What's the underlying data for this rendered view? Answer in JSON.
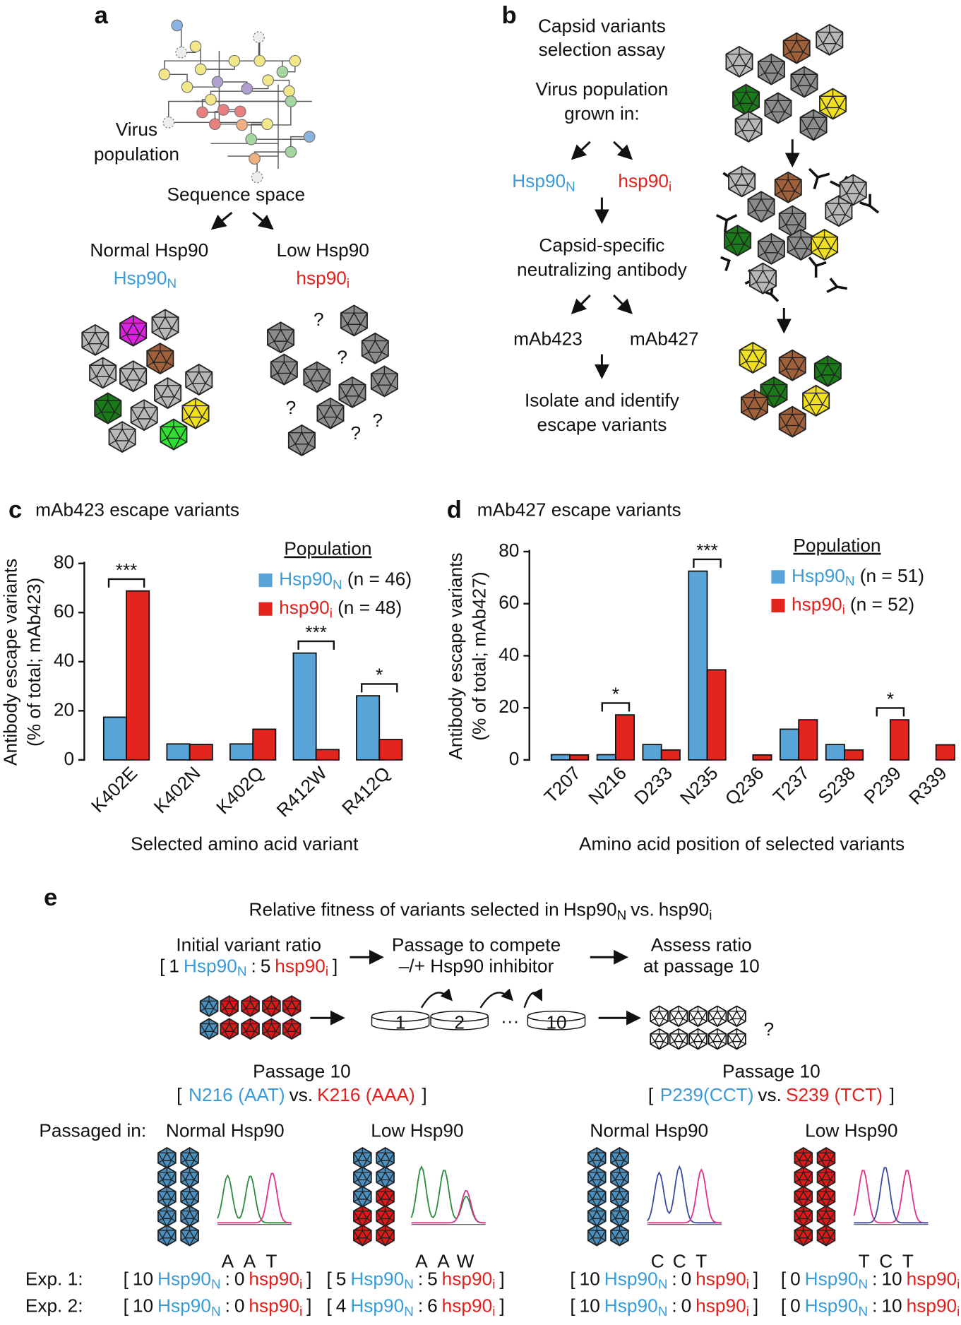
{
  "terms": {
    "N": {
      "base": "Hsp90",
      "sub": "N"
    },
    "i": {
      "base": "hsp90",
      "sub": "i"
    }
  },
  "panel_a": {
    "label": "a",
    "population": [
      "Virus",
      "population"
    ],
    "sequence_space": "Sequence space",
    "normal": "Normal Hsp90",
    "low": "Low Hsp90",
    "unknown": "?"
  },
  "panel_b": {
    "label": "b",
    "title": [
      "Capsid variants",
      "selection assay"
    ],
    "grown": [
      "Virus population",
      "grown in:"
    ],
    "antibody": [
      "Capsid-specific",
      "neutralizing antibody"
    ],
    "antibodies": [
      "mAb423",
      "mAb427"
    ],
    "isolate": [
      "Isolate and identify",
      "escape variants"
    ]
  },
  "chart_data": [
    {
      "type": "bar",
      "panel": "c",
      "title": "mAb423 escape variants",
      "ylabel": [
        "Antibody escape variants",
        "(% of total; mAb423)"
      ],
      "xlabel": "Selected amino acid variant",
      "categories": [
        "K402E",
        "K402N",
        "K402Q",
        "R412W",
        "R412Q"
      ],
      "series": [
        {
          "name": "Hsp90",
          "name_sub": "N",
          "n_label": "(n = 46)",
          "color": "#5aa5d8",
          "values": [
            17.4,
            6.5,
            6.5,
            43.5,
            26.1
          ]
        },
        {
          "name": "hsp90",
          "name_sub": "i",
          "n_label": "(n = 48)",
          "color": "#e3241f",
          "values": [
            68.8,
            6.3,
            12.5,
            4.2,
            8.3
          ]
        }
      ],
      "ylim": [
        0,
        80
      ],
      "yticks": [
        0,
        20,
        40,
        60,
        80
      ],
      "legend_title": "Population",
      "legend": "upper right",
      "annotations": [
        {
          "category": 0,
          "text": "***"
        },
        {
          "category": 3,
          "text": "***"
        },
        {
          "category": 4,
          "text": "*"
        }
      ]
    },
    {
      "type": "bar",
      "panel": "d",
      "title": "mAb427 escape variants",
      "ylabel": [
        "Antibody escape variants",
        "(% of total; mAb427)"
      ],
      "xlabel": "Amino acid position of selected variants",
      "categories": [
        "T207",
        "N216",
        "D233",
        "N235",
        "Q236",
        "T237",
        "S238",
        "P239",
        "R339"
      ],
      "series": [
        {
          "name": "Hsp90",
          "name_sub": "N",
          "n_label": "(n = 51)",
          "color": "#5aa5d8",
          "values": [
            2.0,
            2.0,
            5.9,
            72.5,
            0,
            11.8,
            5.9,
            0,
            0
          ]
        },
        {
          "name": "hsp90",
          "name_sub": "i",
          "n_label": "(n = 52)",
          "color": "#e3241f",
          "values": [
            1.9,
            17.3,
            3.8,
            34.6,
            1.9,
            15.4,
            3.8,
            15.4,
            5.8
          ]
        }
      ],
      "ylim": [
        0,
        80
      ],
      "yticks": [
        0,
        20,
        40,
        60,
        80
      ],
      "legend_title": "Population",
      "legend": "upper right",
      "annotations": [
        {
          "category": 1,
          "text": "*"
        },
        {
          "category": 3,
          "text": "***"
        },
        {
          "category": 7,
          "text": "*"
        }
      ]
    }
  ],
  "panel_e": {
    "label": "e",
    "title": [
      "Relative fitness of variants selected in",
      "vs."
    ],
    "initial": "Initial variant ratio",
    "initial_ratio": [
      "1",
      "5"
    ],
    "passage": [
      "Passage to compete",
      "–/+ Hsp90 inhibitor"
    ],
    "assess": [
      "Assess ratio",
      "at passage 10"
    ],
    "dishes": [
      "1",
      "2",
      "10"
    ],
    "ellipsis": "···",
    "unknown": "?",
    "open": "[",
    "close": "]",
    "colon": ":",
    "vs": "vs.",
    "comparisons": [
      {
        "title": "Passage 10",
        "N": "N216 (AAT)",
        "i": "K216 (AAA)"
      },
      {
        "title": "Passage 10",
        "N": "P239(CCT)",
        "i": "S239 (TCT)"
      }
    ],
    "passaged_in": "Passaged in:",
    "groups": [
      {
        "condition": "Normal Hsp90",
        "bases": [
          "A",
          "A",
          "T"
        ]
      },
      {
        "condition": "Low Hsp90",
        "bases": [
          "A",
          "A",
          "W"
        ]
      },
      {
        "condition": "Normal Hsp90",
        "bases": [
          "C",
          "C",
          "T"
        ]
      },
      {
        "condition": "Low Hsp90",
        "bases": [
          "T",
          "C",
          "T"
        ]
      }
    ],
    "experiments": [
      {
        "label": "Exp. 1:",
        "ratios": [
          [
            10,
            0
          ],
          [
            5,
            5
          ],
          [
            10,
            0
          ],
          [
            0,
            10
          ]
        ]
      },
      {
        "label": "Exp. 2:",
        "ratios": [
          [
            10,
            0
          ],
          [
            4,
            6
          ],
          [
            10,
            0
          ],
          [
            0,
            10
          ]
        ]
      }
    ]
  }
}
